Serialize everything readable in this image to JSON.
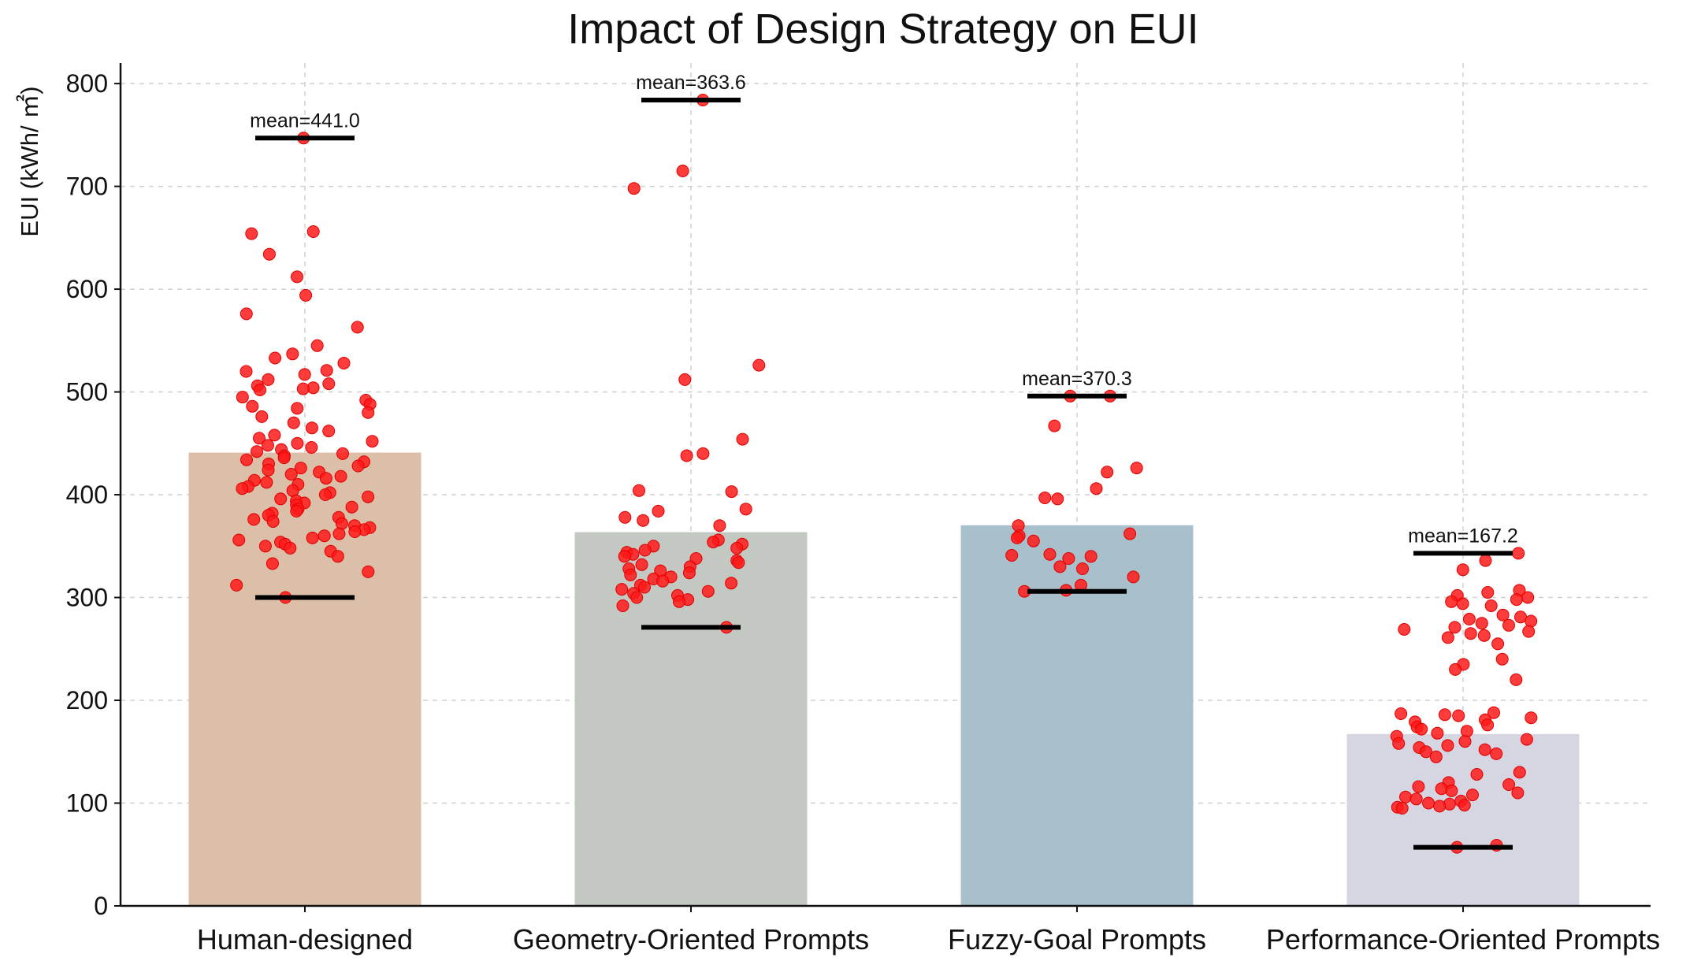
{
  "chart_data": {
    "type": "bar",
    "title": "Impact of Design Strategy on EUI",
    "xlabel": "",
    "ylabel": "EUI (kWh/ ㎡)",
    "ylim": [
      0,
      820
    ],
    "yticks": [
      0,
      100,
      200,
      300,
      400,
      500,
      600,
      700,
      800
    ],
    "grid": true,
    "categories": [
      "Human-designed",
      "Geometry-Oriented Prompts",
      "Fuzzy-Goal Prompts",
      "Performance-Oriented Prompts"
    ],
    "values": [
      441.0,
      363.6,
      370.3,
      167.2
    ],
    "mean_labels": [
      "mean=441.0",
      "mean=363.6",
      "mean=370.3",
      "mean=167.2"
    ],
    "colors": [
      "#dbbfa8",
      "#c4c8c2",
      "#a7c0cb",
      "#d6d6e2"
    ],
    "point_color": "#ff1a1a",
    "ranges": [
      {
        "min": 300,
        "max": 747
      },
      {
        "min": 271,
        "max": 784
      },
      {
        "min": 306,
        "max": 496
      },
      {
        "min": 57,
        "max": 343
      }
    ],
    "points": [
      [
        747,
        656,
        654,
        634,
        612,
        594,
        576,
        563,
        545,
        537,
        533,
        528,
        521,
        520,
        517,
        512,
        508,
        506,
        504,
        503,
        502,
        495,
        492,
        488,
        486,
        484,
        480,
        476,
        470,
        465,
        462,
        458,
        455,
        452,
        450,
        448,
        446,
        444,
        442,
        440,
        438,
        436,
        434,
        432,
        430,
        428,
        426,
        424,
        422,
        420,
        418,
        416,
        414,
        412,
        410,
        408,
        406,
        404,
        402,
        400,
        398,
        396,
        394,
        392,
        390,
        388,
        386,
        384,
        382,
        380,
        378,
        376,
        374,
        372,
        370,
        368,
        366,
        364,
        362,
        360,
        358,
        356,
        354,
        352,
        350,
        348,
        345,
        340,
        333,
        325,
        312,
        300
      ],
      [
        784,
        715,
        698,
        526,
        512,
        454,
        440,
        438,
        404,
        403,
        386,
        384,
        378,
        375,
        370,
        356,
        354,
        352,
        350,
        348,
        346,
        344,
        342,
        340,
        338,
        336,
        334,
        332,
        330,
        328,
        326,
        324,
        322,
        320,
        318,
        316,
        314,
        312,
        310,
        308,
        306,
        304,
        302,
        300,
        298,
        296,
        292,
        271
      ],
      [
        496,
        496,
        467,
        426,
        422,
        406,
        397,
        396,
        370,
        362,
        360,
        358,
        355,
        342,
        341,
        340,
        338,
        330,
        328,
        320,
        312,
        307,
        306
      ],
      [
        343,
        336,
        327,
        307,
        305,
        302,
        300,
        298,
        296,
        294,
        292,
        283,
        281,
        279,
        277,
        275,
        273,
        271,
        269,
        267,
        265,
        263,
        261,
        255,
        240,
        235,
        230,
        220,
        188,
        187,
        186,
        185,
        183,
        181,
        179,
        176,
        174,
        172,
        170,
        168,
        165,
        162,
        160,
        158,
        156,
        154,
        152,
        150,
        148,
        145,
        130,
        128,
        120,
        118,
        116,
        114,
        112,
        110,
        108,
        106,
        104,
        102,
        100,
        99,
        98,
        97,
        96,
        95,
        59,
        57
      ]
    ]
  }
}
